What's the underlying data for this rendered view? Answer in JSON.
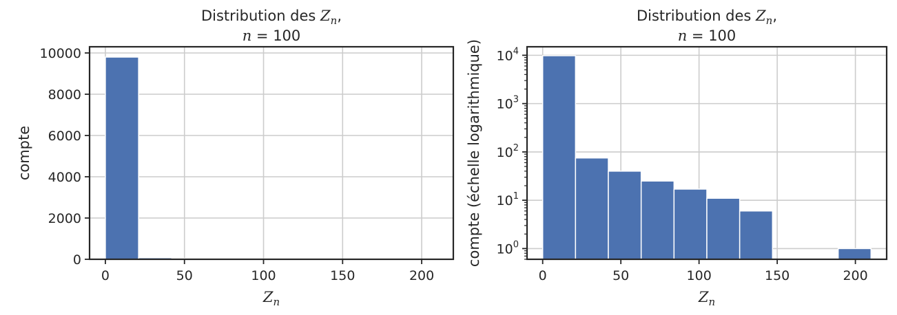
{
  "bar_color": "#4c72b0",
  "chart_data": [
    {
      "type": "bar",
      "title_prefix": "Distribution des ",
      "title_var": "Z",
      "title_sub": "n",
      "title_suffix": ",",
      "title_line2": "n = 100",
      "xlabel_var": "Z",
      "xlabel_sub": "n",
      "ylabel": "compte",
      "yscale": "linear",
      "xlim": [
        -10,
        220
      ],
      "ylim": [
        0,
        10300
      ],
      "xticks": [
        0,
        50,
        100,
        150,
        200
      ],
      "xtick_labels": [
        "0",
        "50",
        "100",
        "150",
        "200"
      ],
      "yticks": [
        0,
        2000,
        4000,
        6000,
        8000,
        10000
      ],
      "ytick_labels": [
        "0",
        "2000",
        "4000",
        "6000",
        "8000",
        "10000"
      ],
      "grid": true,
      "bin_edges": [
        0,
        21,
        42,
        63,
        84,
        105,
        126,
        147,
        168,
        189,
        210
      ],
      "values": [
        9800,
        75,
        40,
        25,
        17,
        11,
        6,
        0,
        0,
        1
      ]
    },
    {
      "type": "bar",
      "title_prefix": "Distribution des ",
      "title_var": "Z",
      "title_sub": "n",
      "title_suffix": ",",
      "title_line2": "n = 100",
      "xlabel_var": "Z",
      "xlabel_sub": "n",
      "ylabel": "compte (échelle logarithmique)",
      "yscale": "log",
      "xlim": [
        -10,
        220
      ],
      "ylim": [
        0.6,
        15000
      ],
      "xticks": [
        0,
        50,
        100,
        150,
        200
      ],
      "xtick_labels": [
        "0",
        "50",
        "100",
        "150",
        "200"
      ],
      "yticks": [
        1,
        10,
        100,
        1000,
        10000
      ],
      "ytick_base": "10",
      "ytick_exponents": [
        "0",
        "1",
        "2",
        "3",
        "4"
      ],
      "grid": true,
      "bin_edges": [
        0,
        21,
        42,
        63,
        84,
        105,
        126,
        147,
        168,
        189,
        210
      ],
      "values": [
        9800,
        75,
        40,
        25,
        17,
        11,
        6,
        0,
        0,
        1
      ]
    }
  ]
}
